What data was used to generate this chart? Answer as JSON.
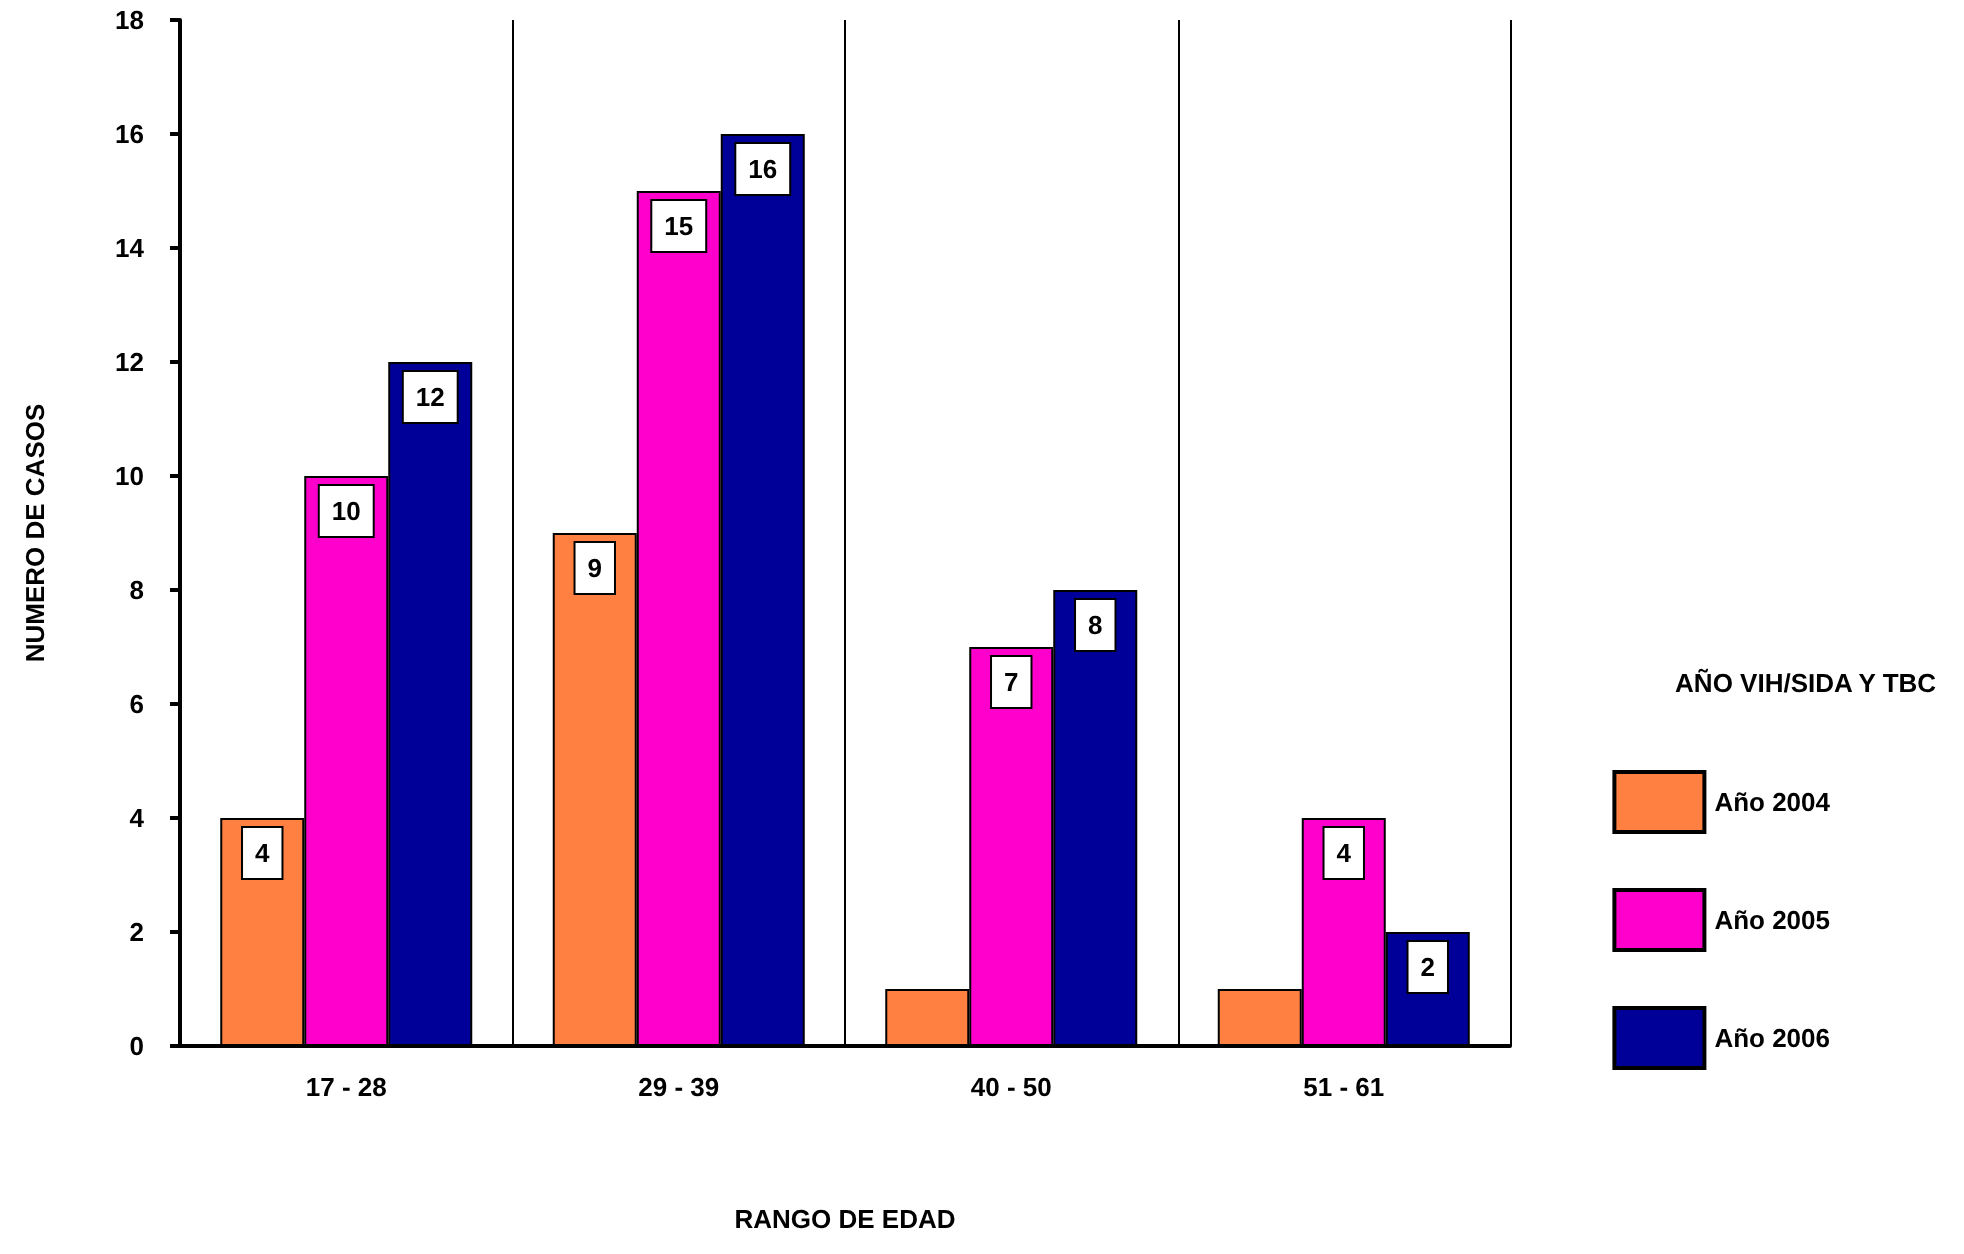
{
  "chart_data": {
    "type": "bar",
    "xlabel": "RANGO DE EDAD",
    "ylabel": "NUMERO DE CASOS",
    "legend_title": "AÑO VIH/SIDA Y TBC",
    "categories": [
      "17 - 28",
      "29 - 39",
      "40 - 50",
      "51 - 61"
    ],
    "series": [
      {
        "name": "Año 2004",
        "color": "#ff8040",
        "values": [
          4,
          9,
          1,
          1
        ],
        "value_labels": [
          "4",
          "9",
          null,
          null
        ]
      },
      {
        "name": "Año 2005",
        "color": "#ff00cc",
        "values": [
          10,
          15,
          7,
          4
        ],
        "value_labels": [
          "10",
          "15",
          "7",
          "4"
        ]
      },
      {
        "name": "Año 2006",
        "color": "#000099",
        "values": [
          12,
          16,
          8,
          2
        ],
        "value_labels": [
          "12",
          "16",
          "8",
          "2"
        ]
      }
    ],
    "ylim": [
      0,
      18
    ],
    "yticks": [
      0,
      2,
      4,
      6,
      8,
      10,
      12,
      14,
      16,
      18
    ],
    "grid": "x",
    "legend": "right"
  }
}
